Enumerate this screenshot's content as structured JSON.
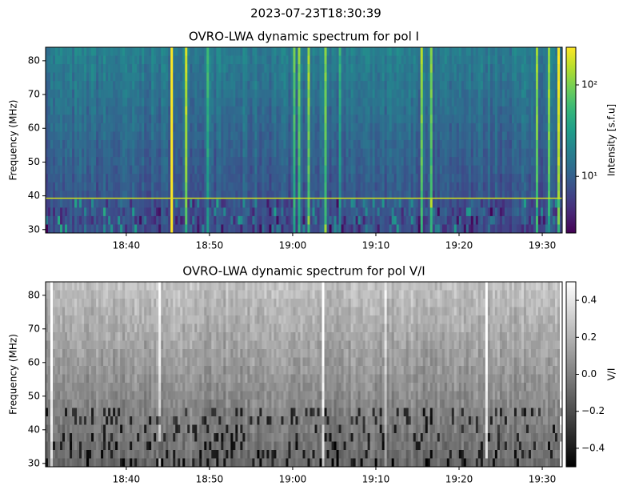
{
  "suptitle": "2023-07-23T18:30:39",
  "chart_data": [
    {
      "type": "heatmap",
      "title": "OVRO-LWA dynamic spectrum for pol I",
      "ylabel": "Frequency (MHz)",
      "xlim": [
        1110.3,
        1172.4
      ],
      "xticks": [
        {
          "value": 1120,
          "label": "18:40"
        },
        {
          "value": 1130,
          "label": "18:50"
        },
        {
          "value": 1140,
          "label": "19:00"
        },
        {
          "value": 1150,
          "label": "19:10"
        },
        {
          "value": 1160,
          "label": "19:20"
        },
        {
          "value": 1170,
          "label": "19:30"
        }
      ],
      "ylim": [
        29,
        84
      ],
      "yticks": [
        30,
        40,
        50,
        60,
        70,
        80
      ],
      "colormap": "viridis",
      "colorbar": {
        "label": "Intensity [s.f.u]",
        "scale": "log",
        "lim": [
          2.4,
          258
        ],
        "ticks": [
          {
            "value": 10,
            "label": "10¹"
          },
          {
            "value": 100,
            "label": "10²"
          }
        ]
      }
    },
    {
      "type": "heatmap",
      "title": "OVRO-LWA dynamic spectrum for pol V/I",
      "ylabel": "Frequency (MHz)",
      "xlim": [
        1110.3,
        1172.4
      ],
      "xticks": [
        {
          "value": 1120,
          "label": "18:40"
        },
        {
          "value": 1130,
          "label": "18:50"
        },
        {
          "value": 1140,
          "label": "19:00"
        },
        {
          "value": 1150,
          "label": "19:10"
        },
        {
          "value": 1160,
          "label": "19:20"
        },
        {
          "value": 1170,
          "label": "19:30"
        }
      ],
      "ylim": [
        29,
        84
      ],
      "yticks": [
        30,
        40,
        50,
        60,
        70,
        80
      ],
      "colormap": "gray",
      "colorbar": {
        "label": "V/I",
        "scale": "linear",
        "lim": [
          -0.5,
          0.5
        ],
        "ticks": [
          0.4,
          0.2,
          {
            "value": 0,
            "label": "0.0"
          },
          {
            "value": -0.2,
            "label": "−0.2"
          },
          {
            "value": -0.4,
            "label": "−0.4"
          }
        ]
      }
    }
  ]
}
